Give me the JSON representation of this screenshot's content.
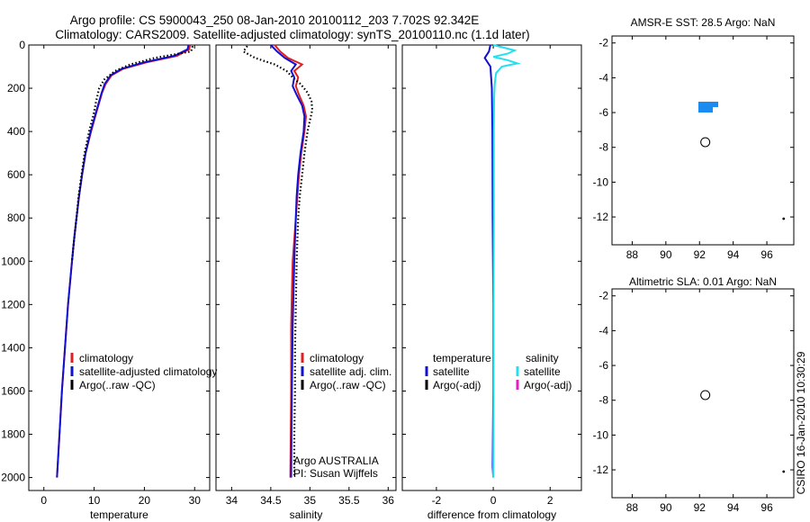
{
  "header": {
    "line1": "Argo profile: CS 5900043_250 08-Jan-2010 20100112_203 7.702S 92.342E",
    "line2": "Climatology: CARS2009. Satellite-adjusted climatology: synTS_20100110.nc (1.1d later)"
  },
  "credit": "CSIRO 16-Jan-2010 10:30:29",
  "colors": {
    "climatology": "#e02020",
    "satellite": "#1010d0",
    "argo": "#000000",
    "sal_satellite": "#22e0f0",
    "sal_argo": "#e020c0"
  },
  "chart_data": [
    {
      "type": "line",
      "name": "temperature-profile",
      "xlabel": "temperature",
      "ylabel": "",
      "xlim": [
        -3,
        33
      ],
      "ylim": [
        2060,
        0
      ],
      "xticks": [
        0,
        10,
        20,
        30
      ],
      "yticks": [
        0,
        200,
        400,
        600,
        800,
        1000,
        1200,
        1400,
        1600,
        1800,
        2000
      ],
      "legend": [
        "climatology",
        "satellite-adjusted climatology",
        "Argo(..raw -QC)"
      ],
      "series": [
        {
          "name": "climatology",
          "color": "#e02020",
          "style": "solid",
          "depth": [
            0,
            20,
            50,
            80,
            110,
            140,
            180,
            220,
            300,
            400,
            500,
            600,
            700,
            800,
            900,
            1000,
            1200,
            1400,
            1600,
            1800,
            2000
          ],
          "values": [
            29.1,
            28.9,
            26.5,
            20.5,
            15.8,
            13.5,
            12.3,
            11.6,
            10.6,
            9.4,
            8.3,
            7.6,
            7.0,
            6.5,
            6.0,
            5.6,
            4.8,
            4.2,
            3.6,
            3.1,
            2.6
          ]
        },
        {
          "name": "satellite-adjusted climatology",
          "color": "#1010d0",
          "style": "solid",
          "depth": [
            0,
            20,
            50,
            80,
            110,
            140,
            180,
            220,
            300,
            400,
            500,
            600,
            700,
            800,
            900,
            1000,
            1200,
            1400,
            1600,
            1800,
            2000
          ],
          "values": [
            28.8,
            28.6,
            26.0,
            20.0,
            15.5,
            13.3,
            12.1,
            11.5,
            10.5,
            9.3,
            8.3,
            7.6,
            7.0,
            6.5,
            6.0,
            5.6,
            4.8,
            4.2,
            3.6,
            3.1,
            2.6
          ]
        },
        {
          "name": "Argo(..raw -QC)",
          "color": "#000000",
          "style": "dotted",
          "depth": [
            5,
            30,
            60,
            90,
            120,
            160,
            200,
            260,
            320,
            400,
            500,
            600,
            700,
            800,
            900,
            1000
          ],
          "values": [
            29.6,
            29.3,
            22.0,
            17.2,
            14.2,
            12.0,
            11.0,
            10.4,
            9.9,
            9.0,
            8.1,
            7.5,
            6.9,
            6.5,
            6.0,
            5.6
          ]
        }
      ]
    },
    {
      "type": "line",
      "name": "salinity-profile",
      "xlabel": "salinity",
      "xlim": [
        33.8,
        36.1
      ],
      "ylim": [
        2060,
        0
      ],
      "xticks": [
        34,
        34.5,
        35,
        35.5,
        36
      ],
      "xticklabels": [
        "34",
        "34.5",
        "35",
        "35.5",
        "36"
      ],
      "legend": [
        "climatology",
        "satellite adj. clim.",
        "Argo(..raw -QC)"
      ],
      "annotation": [
        "Argo AUSTRALIA",
        "PI: Susan Wijffels"
      ],
      "series": [
        {
          "name": "climatology",
          "color": "#e02020",
          "style": "solid",
          "depth": [
            0,
            30,
            60,
            90,
            120,
            150,
            190,
            230,
            280,
            330,
            400,
            500,
            600,
            700,
            800,
            900,
            1000,
            1150,
            1300,
            1600,
            2000
          ],
          "values": [
            34.55,
            34.62,
            34.72,
            34.9,
            34.8,
            34.85,
            34.82,
            34.86,
            34.92,
            34.95,
            34.93,
            34.89,
            34.86,
            34.84,
            34.82,
            34.8,
            34.78,
            34.77,
            34.76,
            34.76,
            34.75
          ]
        },
        {
          "name": "satellite adj. clim.",
          "color": "#1010d0",
          "style": "solid",
          "depth": [
            0,
            30,
            60,
            90,
            120,
            150,
            190,
            230,
            280,
            330,
            400,
            500,
            600,
            700,
            800,
            900,
            1000,
            1150,
            1300,
            1600,
            2000
          ],
          "values": [
            34.5,
            34.58,
            34.68,
            34.82,
            34.76,
            34.8,
            34.78,
            34.83,
            34.9,
            34.93,
            34.92,
            34.88,
            34.85,
            34.83,
            34.82,
            34.81,
            34.8,
            34.79,
            34.78,
            34.77,
            34.76
          ]
        },
        {
          "name": "Argo(..raw -QC)",
          "color": "#000000",
          "style": "dotted",
          "depth": [
            5,
            30,
            60,
            90,
            120,
            150,
            180,
            220,
            260,
            300,
            350,
            400,
            500,
            600,
            700,
            800,
            900,
            1000,
            1200,
            1400,
            1600,
            1800,
            2000
          ],
          "values": [
            34.2,
            34.15,
            34.3,
            34.55,
            34.7,
            34.78,
            34.88,
            34.97,
            35.02,
            35.03,
            35.0,
            34.97,
            34.93,
            34.9,
            34.87,
            34.85,
            34.84,
            34.83,
            34.82,
            34.81,
            34.81,
            34.8,
            34.8
          ]
        }
      ]
    },
    {
      "type": "line",
      "name": "difference-profile",
      "xlabel": "difference from climatology",
      "xlim": [
        -3.2,
        3.1
      ],
      "ylim": [
        2060,
        0
      ],
      "xticks": [
        -2,
        0,
        2
      ],
      "legend_temp_title": "temperature",
      "legend_temp": [
        "satellite",
        "Argo(-adj)"
      ],
      "legend_sal_title": "salinity",
      "legend_sal": [
        "satellite",
        "Argo(-adj)"
      ],
      "series": [
        {
          "name": "temperature satellite",
          "color": "#1010d0",
          "style": "solid",
          "depth": [
            0,
            30,
            60,
            100,
            200,
            400,
            800,
            1200,
            1600,
            1950,
            2000
          ],
          "values": [
            -0.1,
            -0.15,
            -0.3,
            -0.1,
            -0.05,
            -0.03,
            -0.02,
            0.0,
            0.0,
            -0.02,
            0.0
          ]
        },
        {
          "name": "salinity satellite",
          "color": "#22e0f0",
          "style": "solid",
          "depth": [
            0,
            10,
            25,
            40,
            55,
            70,
            85,
            100,
            130,
            180,
            250,
            400,
            800,
            1200,
            1600,
            2000
          ],
          "values": [
            0.0,
            0.3,
            0.75,
            0.5,
            0.0,
            0.5,
            0.85,
            0.3,
            0.1,
            0.05,
            0.03,
            0.02,
            0.02,
            0.01,
            0.01,
            0.0
          ]
        }
      ]
    },
    {
      "type": "heatmap",
      "name": "amse-sst-map",
      "title": "AMSR-E SST: 28.5 Argo: NaN",
      "xlim": [
        86.8,
        97.6
      ],
      "ylim": [
        -13.6,
        -1.6
      ],
      "xticks": [
        88,
        90,
        92,
        94,
        96
      ],
      "yticks": [
        -2,
        -4,
        -6,
        -8,
        -10,
        -12
      ],
      "data_xlim": [
        90,
        97.3
      ],
      "marker": {
        "lon": 92.342,
        "lat": -7.702
      }
    },
    {
      "type": "heatmap",
      "name": "altimetric-sla-map",
      "title": "Altimetric SLA: 0.01 Argo: NaN",
      "xlim": [
        86.8,
        97.6
      ],
      "ylim": [
        -13.6,
        -1.6
      ],
      "xticks": [
        88,
        90,
        92,
        94,
        96
      ],
      "yticks": [
        -2,
        -4,
        -6,
        -8,
        -10,
        -12
      ],
      "data_xlim": [
        90,
        97.3
      ],
      "marker": {
        "lon": 92.342,
        "lat": -7.702
      }
    }
  ]
}
